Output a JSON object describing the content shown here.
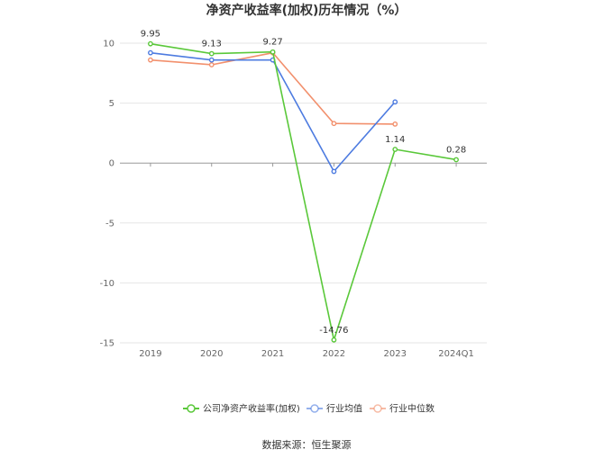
{
  "chart_data": {
    "type": "line",
    "title": "净资产收益率(加权)历年情况（%）",
    "categories": [
      "2019",
      "2020",
      "2021",
      "2022",
      "2023",
      "2024Q1"
    ],
    "ylim": [
      -15,
      10
    ],
    "yticks": [
      10,
      5,
      0,
      -5,
      -10,
      -15
    ],
    "grid": true,
    "legend_position": "bottom",
    "series": [
      {
        "name": "公司净资产收益率(加权)",
        "color": "#5ac83a",
        "values": [
          9.95,
          9.13,
          9.27,
          -14.76,
          1.14,
          0.28
        ],
        "labels": [
          "9.95",
          "9.13",
          "9.27",
          "-14.76",
          "1.14",
          "0.28"
        ]
      },
      {
        "name": "行业均值",
        "color": "#4d7be0",
        "values": [
          9.2,
          8.6,
          8.6,
          -0.7,
          5.1,
          null
        ]
      },
      {
        "name": "行业中位数",
        "color": "#f2906d",
        "values": [
          8.6,
          8.2,
          9.2,
          3.3,
          3.25,
          null
        ]
      }
    ],
    "source": "数据来源：恒生聚源"
  }
}
